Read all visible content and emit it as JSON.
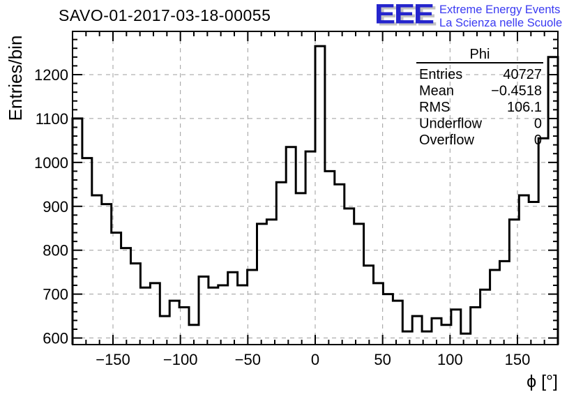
{
  "page": {
    "title": "SAVO-01-2017-03-18-00055"
  },
  "logo": {
    "letters": "EEE",
    "line1": "Extreme Energy Events",
    "line2": "La Scienza nelle Scuole",
    "blue": "#2525cd",
    "tagline_blue": "#3a3af2"
  },
  "chart_data": {
    "type": "bar",
    "subtype": "histogram-step",
    "title": "SAVO-01-2017-03-18-00055",
    "xlabel": "ϕ [°]",
    "ylabel": "Entries/bin",
    "xlim": [
      -180,
      180
    ],
    "ylim": [
      585,
      1298.5
    ],
    "grid": true,
    "line_color": "#000000",
    "grid_color": "#9c9c9c",
    "bin_start": -180,
    "bin_width": 7.2,
    "n_bins": 50,
    "values": [
      1100,
      1010,
      925,
      905,
      840,
      805,
      770,
      715,
      725,
      650,
      685,
      670,
      630,
      740,
      715,
      720,
      750,
      720,
      755,
      860,
      870,
      955,
      1035,
      930,
      1025,
      1265,
      980,
      950,
      895,
      860,
      765,
      725,
      700,
      685,
      615,
      650,
      615,
      645,
      630,
      665,
      610,
      670,
      710,
      755,
      775,
      870,
      925,
      910,
      1055,
      1240
    ],
    "xticks": {
      "values": [
        -150,
        -100,
        -50,
        0,
        50,
        100,
        150
      ],
      "labels": [
        "−150",
        "−100",
        "−50",
        "0",
        "50",
        "100",
        "150"
      ],
      "minor_step": 10
    },
    "yticks": {
      "values": [
        600,
        700,
        800,
        900,
        1000,
        1100,
        1200
      ],
      "labels": [
        "600",
        "700",
        "800",
        "900",
        "1000",
        "1100",
        "1200"
      ],
      "minor_step": 20
    }
  },
  "stats_box": {
    "title": "Phi",
    "rows": [
      {
        "label": "Entries",
        "value": "40727"
      },
      {
        "label": "Mean",
        "value": "−0.4518"
      },
      {
        "label": "RMS",
        "value": "106.1"
      },
      {
        "label": "Underflow",
        "value": "0"
      },
      {
        "label": "Overflow",
        "value": "0"
      }
    ]
  }
}
